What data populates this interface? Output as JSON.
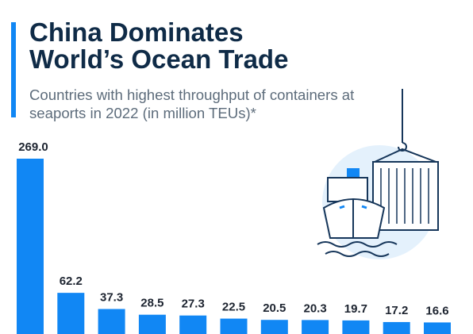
{
  "chart_data": {
    "type": "bar",
    "title": "China Dominates World’s Ocean Trade",
    "subtitle": "Countries with highest throughput of containers at seaports in 2022 (in million TEUs)*",
    "values": [
      269.0,
      62.2,
      37.3,
      28.5,
      27.3,
      22.5,
      20.5,
      20.3,
      19.7,
      17.2,
      16.6
    ],
    "value_labels": [
      "269.0",
      "62.2",
      "37.3",
      "28.5",
      "27.3",
      "22.5",
      "20.5",
      "20.3",
      "19.7",
      "17.2",
      "16.6"
    ],
    "color": "#1187f4"
  }
}
